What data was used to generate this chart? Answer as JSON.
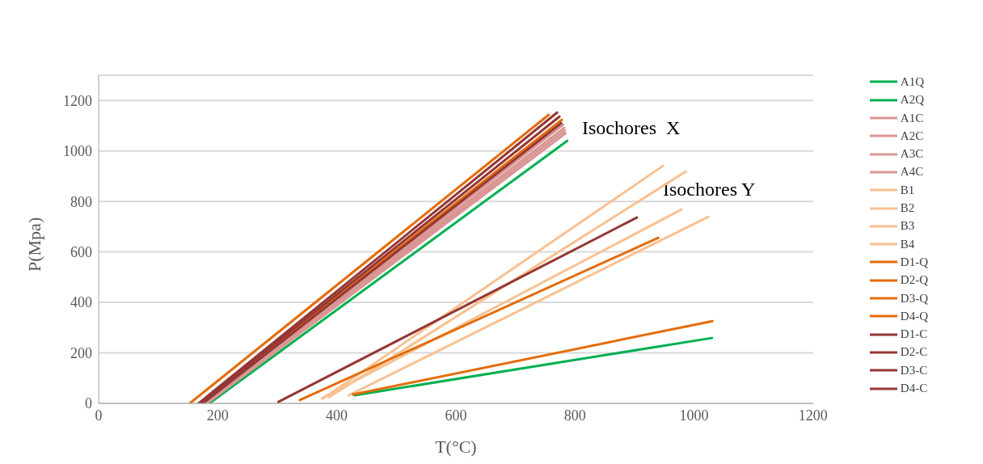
{
  "chart_data": {
    "type": "line",
    "xlabel": "T(°C)",
    "ylabel": "P(Mpa)",
    "xlim": [
      0,
      1200
    ],
    "xticks": [
      0,
      200,
      400,
      600,
      800,
      1000,
      1200
    ],
    "ylim": [
      0,
      1300
    ],
    "yticks": [
      0,
      200,
      400,
      600,
      800,
      1000,
      1200
    ],
    "grid": "y",
    "legend": "right",
    "marker": "none",
    "line_style": "solid",
    "annotations": [
      "Isochores  X",
      "Isochores Y"
    ],
    "series": [
      {
        "name": "A1Q",
        "color": "#00b050",
        "x": [
          186,
          787
        ],
        "values": [
          0,
          1040
        ]
      },
      {
        "name": "A2Q",
        "color": "#00b050",
        "x": [
          430,
          1030
        ],
        "values": [
          32,
          259
        ]
      },
      {
        "name": "A1C",
        "color": "#d99694",
        "x": [
          179,
          780
        ],
        "values": [
          0,
          1104
        ]
      },
      {
        "name": "A2C",
        "color": "#d99694",
        "x": [
          180,
          782
        ],
        "values": [
          0,
          1091
        ]
      },
      {
        "name": "A3C",
        "color": "#d99694",
        "x": [
          181,
          783
        ],
        "values": [
          0,
          1080
        ]
      },
      {
        "name": "A4C",
        "color": "#d99694",
        "x": [
          182,
          784
        ],
        "values": [
          0,
          1069
        ]
      },
      {
        "name": "B1",
        "color": "#fac090",
        "x": [
          377,
          948
        ],
        "values": [
          19,
          941
        ]
      },
      {
        "name": "B2",
        "color": "#fac090",
        "x": [
          387,
          986
        ],
        "values": [
          25,
          918
        ]
      },
      {
        "name": "B3",
        "color": "#fac090",
        "x": [
          375,
          979
        ],
        "values": [
          20,
          768
        ]
      },
      {
        "name": "B4",
        "color": "#fac090",
        "x": [
          420,
          1024
        ],
        "values": [
          32,
          739
        ]
      },
      {
        "name": "D1-Q",
        "color": "#e46c0a",
        "x": [
          153,
          756
        ],
        "values": [
          0,
          1143
        ]
      },
      {
        "name": "D2-Q",
        "color": "#e46c0a",
        "x": [
          172,
          778
        ],
        "values": [
          0,
          1123
        ]
      },
      {
        "name": "D3-Q",
        "color": "#e46c0a",
        "x": [
          338,
          940
        ],
        "values": [
          13,
          656
        ]
      },
      {
        "name": "D4-Q",
        "color": "#e46c0a",
        "x": [
          427,
          1031
        ],
        "values": [
          35,
          326
        ]
      },
      {
        "name": "D1-C",
        "color": "#953735",
        "x": [
          168,
          770
        ],
        "values": [
          0,
          1152
        ]
      },
      {
        "name": "D2-C",
        "color": "#953735",
        "x": [
          171,
          774
        ],
        "values": [
          0,
          1136
        ]
      },
      {
        "name": "D3-C",
        "color": "#953735",
        "x": [
          175,
          777
        ],
        "values": [
          0,
          1110
        ]
      },
      {
        "name": "D4-C",
        "color": "#953735",
        "x": [
          302,
          904
        ],
        "values": [
          6,
          736
        ]
      }
    ]
  }
}
